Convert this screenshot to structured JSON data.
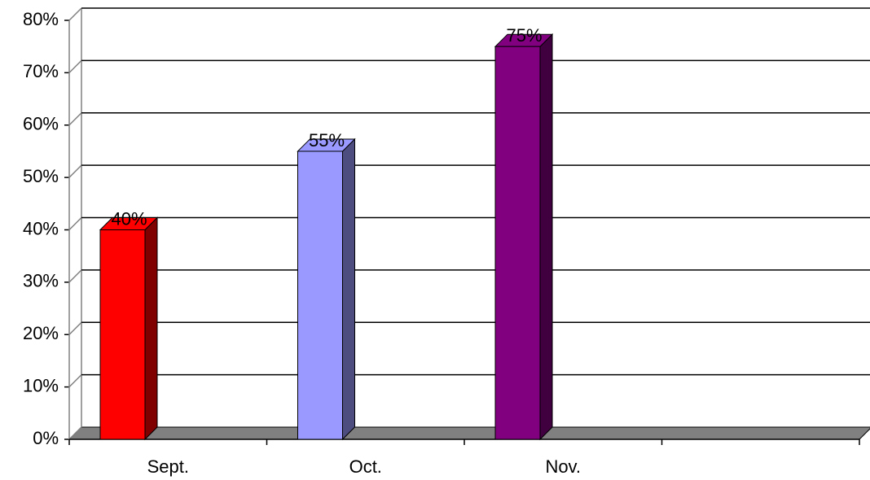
{
  "chart_data": {
    "type": "bar3d",
    "categories": [
      "Sept.",
      "Oct.",
      "Nov.",
      null
    ],
    "values": [
      40,
      55,
      75,
      null
    ],
    "value_labels": [
      "40%",
      "55%",
      "75%",
      null
    ],
    "colors": [
      "#ff0000",
      "#9999ff",
      "#800080",
      null
    ],
    "side_colors": [
      "#800000",
      "#4d4d80",
      "#400040",
      null
    ],
    "ylim": [
      0,
      80
    ],
    "yticks": [
      {
        "value": 0,
        "label": "0%"
      },
      {
        "value": 10,
        "label": "10%"
      },
      {
        "value": 20,
        "label": "20%"
      },
      {
        "value": 30,
        "label": "30%"
      },
      {
        "value": 40,
        "label": "40%"
      },
      {
        "value": 50,
        "label": "50%"
      },
      {
        "value": 60,
        "label": "60%"
      },
      {
        "value": 70,
        "label": "70%"
      },
      {
        "value": 80,
        "label": "80%"
      }
    ],
    "grid": true
  }
}
